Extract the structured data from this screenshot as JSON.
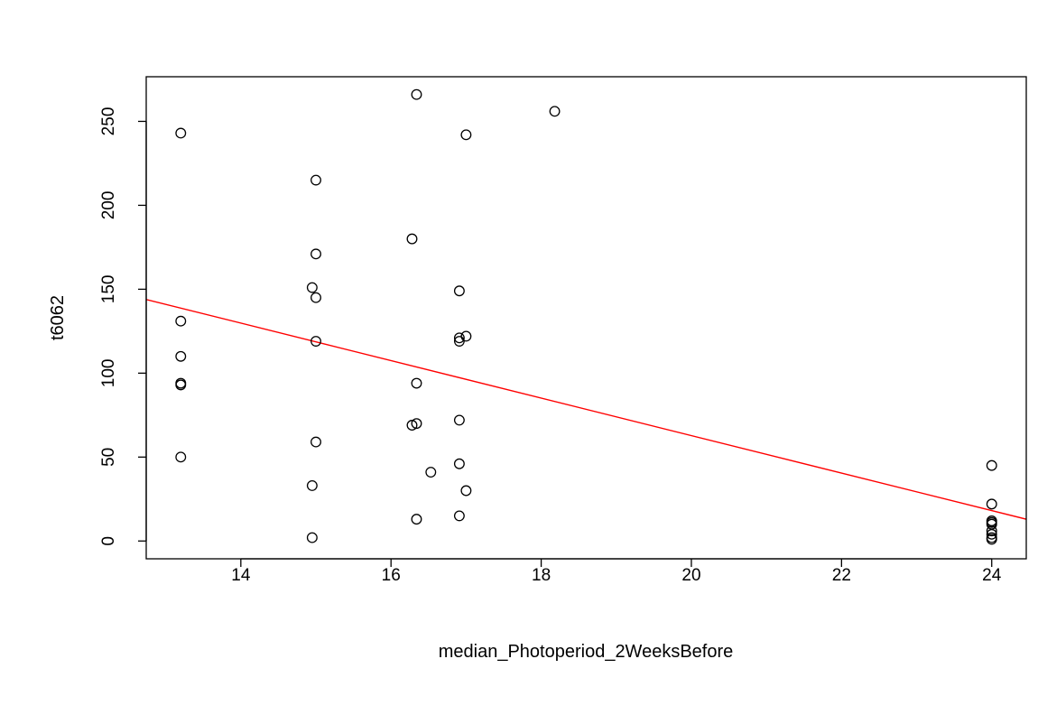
{
  "chart_data": {
    "type": "scatter",
    "title": "",
    "xlabel": "median_Photoperiod_2WeeksBefore",
    "ylabel": "t6062",
    "xlim": [
      12.74,
      24.46
    ],
    "ylim": [
      -10.6,
      276.6
    ],
    "xticks": [
      14,
      16,
      18,
      20,
      22,
      24
    ],
    "yticks": [
      0,
      50,
      100,
      150,
      200,
      250
    ],
    "grid": false,
    "legend": "none",
    "point_color": "#000000",
    "points": [
      {
        "x": 13.2,
        "y": 243
      },
      {
        "x": 13.2,
        "y": 131
      },
      {
        "x": 13.2,
        "y": 110
      },
      {
        "x": 13.2,
        "y": 94
      },
      {
        "x": 13.2,
        "y": 93
      },
      {
        "x": 13.2,
        "y": 50
      },
      {
        "x": 14.95,
        "y": 151
      },
      {
        "x": 14.95,
        "y": 33
      },
      {
        "x": 14.95,
        "y": 2
      },
      {
        "x": 15.0,
        "y": 215
      },
      {
        "x": 15.0,
        "y": 171
      },
      {
        "x": 15.0,
        "y": 145
      },
      {
        "x": 15.0,
        "y": 119
      },
      {
        "x": 15.0,
        "y": 59
      },
      {
        "x": 16.28,
        "y": 180
      },
      {
        "x": 16.28,
        "y": 69
      },
      {
        "x": 16.34,
        "y": 266
      },
      {
        "x": 16.34,
        "y": 94
      },
      {
        "x": 16.34,
        "y": 70
      },
      {
        "x": 16.34,
        "y": 13
      },
      {
        "x": 16.53,
        "y": 41
      },
      {
        "x": 16.91,
        "y": 149
      },
      {
        "x": 16.91,
        "y": 121
      },
      {
        "x": 16.91,
        "y": 119
      },
      {
        "x": 16.91,
        "y": 72
      },
      {
        "x": 16.91,
        "y": 46
      },
      {
        "x": 16.91,
        "y": 15
      },
      {
        "x": 17.0,
        "y": 242
      },
      {
        "x": 17.0,
        "y": 122
      },
      {
        "x": 17.0,
        "y": 30
      },
      {
        "x": 18.18,
        "y": 256
      },
      {
        "x": 24.0,
        "y": 45
      },
      {
        "x": 24.0,
        "y": 22
      },
      {
        "x": 24.0,
        "y": 12
      },
      {
        "x": 24.0,
        "y": 11
      },
      {
        "x": 24.0,
        "y": 10
      },
      {
        "x": 24.0,
        "y": 6
      },
      {
        "x": 24.0,
        "y": 4
      },
      {
        "x": 24.0,
        "y": 2
      },
      {
        "x": 24.0,
        "y": 1
      }
    ],
    "fit_line": {
      "color": "#ff0000",
      "intercept": 286.2,
      "slope": -11.17
    }
  }
}
